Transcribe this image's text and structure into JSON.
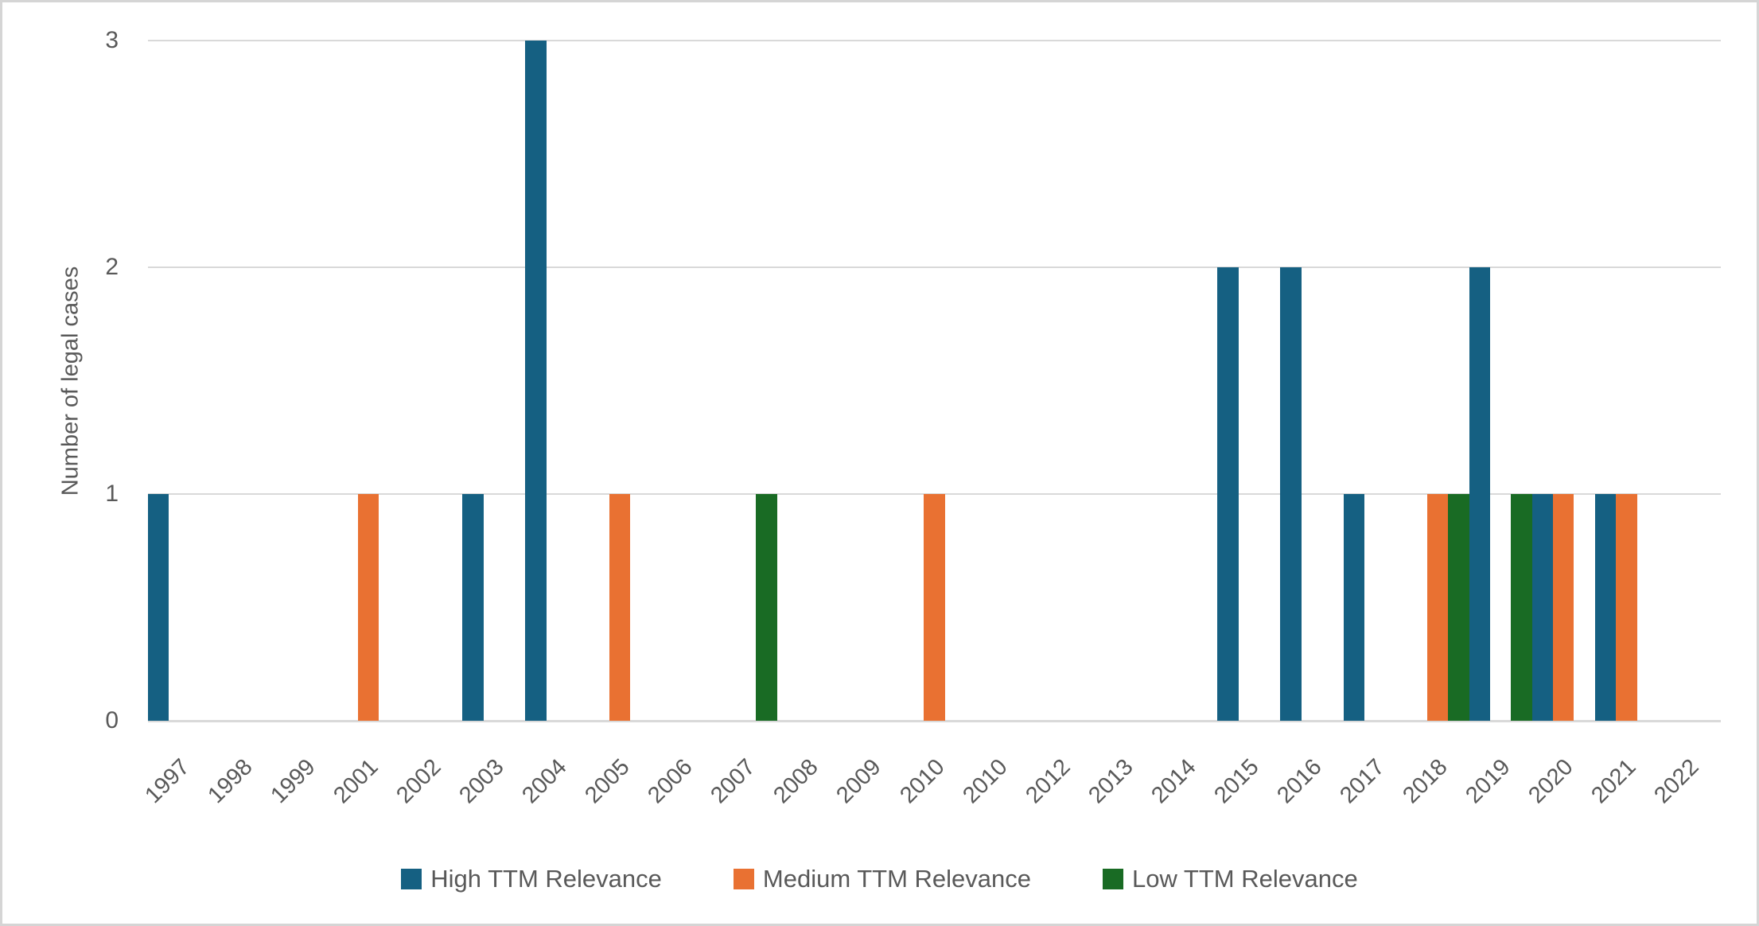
{
  "figure": {
    "background": "#FFFFFF",
    "border_color": "#D5D5D5",
    "text_color": "#595959",
    "gridline_color": "#D9D9D9"
  },
  "chart_data": {
    "type": "bar",
    "title": "",
    "xlabel": "",
    "ylabel": "Number of legal cases",
    "categories": [
      "1997",
      "1998",
      "1999",
      "2001",
      "2002",
      "2003",
      "2004",
      "2005",
      "2006",
      "2007",
      "2008",
      "2009",
      "2010",
      "2010",
      "2012",
      "2013",
      "2014",
      "2015",
      "2016",
      "2017",
      "2018",
      "2019",
      "2020",
      "2021",
      "2022"
    ],
    "series": [
      {
        "name": "High TTM Relevance",
        "color": "#156082",
        "values": [
          1,
          0,
          0,
          0,
          0,
          1,
          3,
          0,
          0,
          0,
          0,
          0,
          0,
          0,
          0,
          0,
          0,
          2,
          2,
          1,
          0,
          2,
          1,
          1,
          0
        ]
      },
      {
        "name": "Medium TTM Relevance",
        "color": "#E97132",
        "values": [
          0,
          0,
          0,
          1,
          0,
          0,
          0,
          1,
          0,
          0,
          0,
          0,
          1,
          0,
          0,
          0,
          0,
          0,
          0,
          0,
          1,
          0,
          1,
          1,
          0
        ]
      },
      {
        "name": "Low TTM Relevance",
        "color": "#196B24",
        "values": [
          0,
          0,
          0,
          0,
          0,
          0,
          0,
          0,
          0,
          1,
          0,
          0,
          0,
          0,
          0,
          0,
          0,
          0,
          0,
          0,
          1,
          1,
          0,
          0,
          0
        ]
      }
    ],
    "yticks": [
      "0",
      "1",
      "2",
      "3"
    ],
    "ylim": [
      0,
      3
    ],
    "grid": true,
    "legend_position": "bottom",
    "bar_layout": {
      "grouped": true,
      "gap_between_groups": 0
    }
  }
}
